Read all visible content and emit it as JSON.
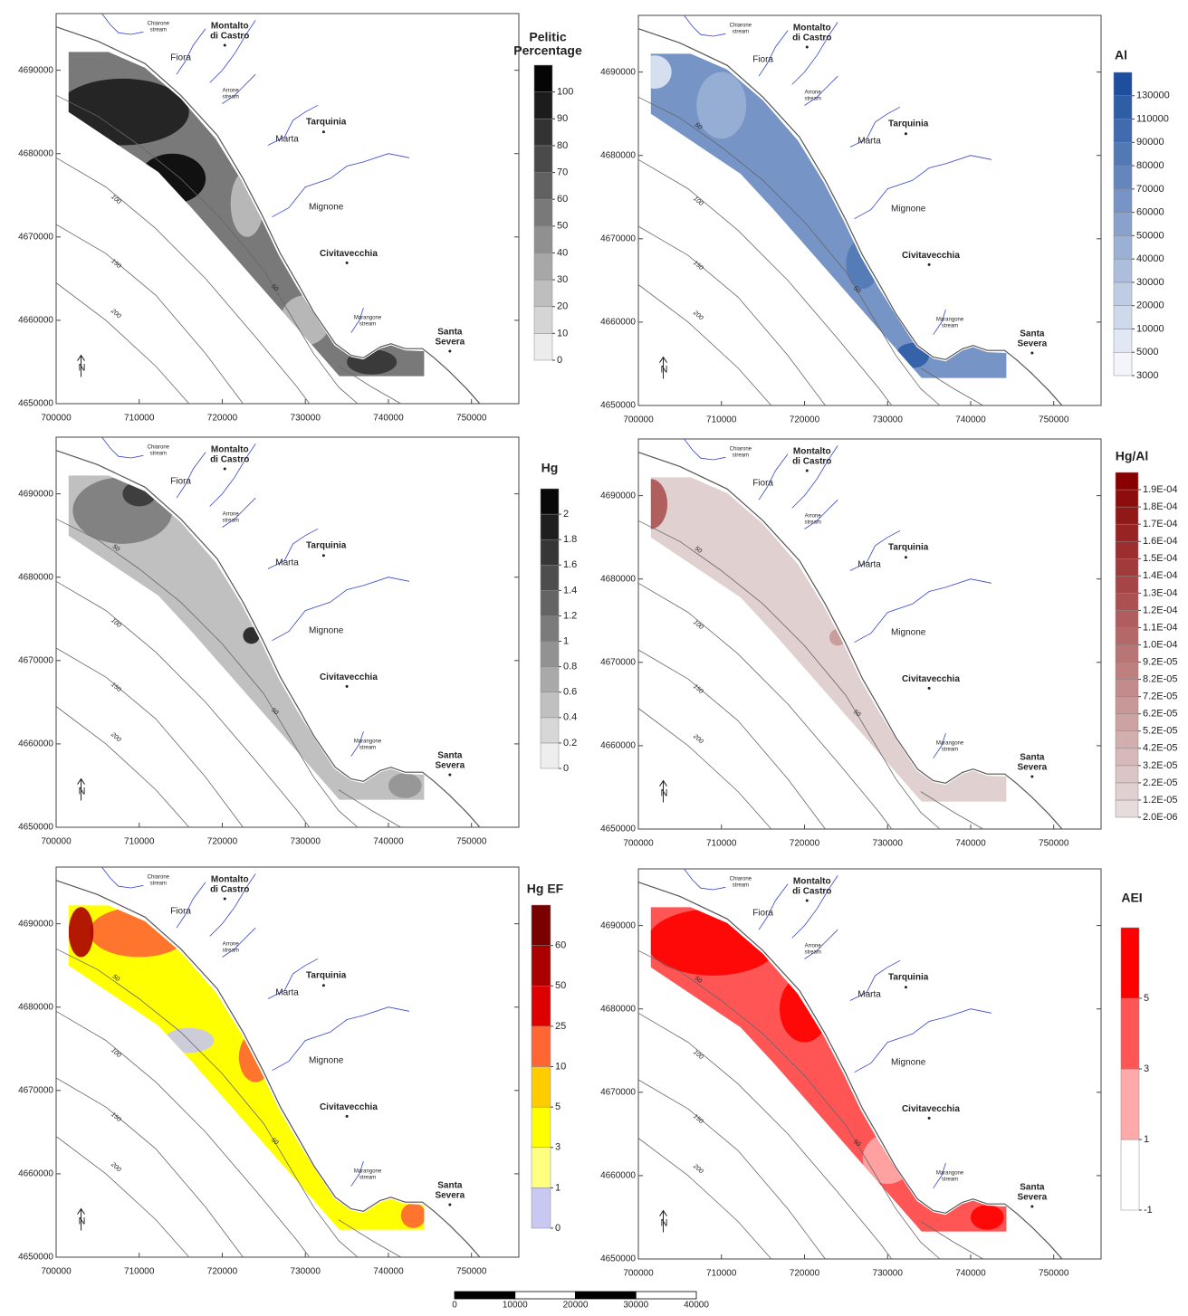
{
  "map": {
    "xlim": [
      700000,
      755700
    ],
    "ylim": [
      4650000,
      4696800
    ],
    "xticks": [
      700000,
      710000,
      720000,
      730000,
      740000,
      750000
    ],
    "yticks": [
      4650000,
      4660000,
      4670000,
      4680000,
      4690000
    ],
    "places": [
      {
        "label": [
          "Chiarone",
          "stream"
        ]
      },
      {
        "label": [
          "Montalto",
          "di Castro"
        ]
      },
      {
        "label": [
          "Fiora"
        ]
      },
      {
        "label": [
          "Arrone",
          "stream"
        ]
      },
      {
        "label": [
          "Tarquinia"
        ]
      },
      {
        "label": [
          "Marta"
        ]
      },
      {
        "label": [
          "Mignone"
        ]
      },
      {
        "label": [
          "Civitavecchia"
        ]
      },
      {
        "label": [
          "Marangone",
          "stream"
        ]
      },
      {
        "label": [
          "Santa",
          "Severa"
        ]
      }
    ],
    "isobaths": [
      50,
      100,
      150,
      200
    ],
    "north": "N"
  },
  "panels": [
    {
      "title": [
        "Pelitic",
        "Percentage"
      ],
      "ticks": [
        0,
        10,
        20,
        30,
        40,
        50,
        60,
        70,
        80,
        90,
        100
      ],
      "color_range": [
        "#ececec",
        "#050505"
      ]
    },
    {
      "title": [
        "Al"
      ],
      "ticks": [
        3000,
        5000,
        10000,
        20000,
        30000,
        40000,
        50000,
        60000,
        70000,
        80000,
        90000,
        110000,
        130000
      ],
      "color_range": [
        "#f3f5fb",
        "#1d4f9e"
      ]
    },
    {
      "title": [
        "Hg"
      ],
      "ticks": [
        0,
        0.2,
        0.4,
        0.6,
        0.8,
        1,
        1.2,
        1.4,
        1.6,
        1.8,
        2
      ],
      "color_range": [
        "#eeeeee",
        "#080808"
      ]
    },
    {
      "title": [
        "Hg/Al"
      ],
      "ticks": [
        {
          "value": 2e-06,
          "label": "2.0E-06"
        },
        {
          "value": 1.2e-05,
          "label": "1.2E-05"
        },
        {
          "value": 2.2e-05,
          "label": "2.2E-05"
        },
        {
          "value": 3.2e-05,
          "label": "3.2E-05"
        },
        {
          "value": 4.2e-05,
          "label": "4.2E-05"
        },
        {
          "value": 5.2e-05,
          "label": "5.2E-05"
        },
        {
          "value": 6.2e-05,
          "label": "6.2E-05"
        },
        {
          "value": 7.2e-05,
          "label": "7.2E-05"
        },
        {
          "value": 8.2e-05,
          "label": "8.2E-05"
        },
        {
          "value": 9.2e-05,
          "label": "9.2E-05"
        },
        {
          "value": 0.0001,
          "label": "1.0E-04"
        },
        {
          "value": 0.00011,
          "label": "1.1E-04"
        },
        {
          "value": 0.00012,
          "label": "1.2E-04"
        },
        {
          "value": 0.00013,
          "label": "1.3E-04"
        },
        {
          "value": 0.00014,
          "label": "1.4E-04"
        },
        {
          "value": 0.00015,
          "label": "1.5E-04"
        },
        {
          "value": 0.00016,
          "label": "1.6E-04"
        },
        {
          "value": 0.00017,
          "label": "1.7E-04"
        },
        {
          "value": 0.00018,
          "label": "1.8E-04"
        },
        {
          "value": 0.00019,
          "label": "1.9E-04"
        }
      ],
      "color_range": [
        "#e6dcdc",
        "#880000"
      ]
    },
    {
      "title": [
        "Hg EF"
      ],
      "ticks": [
        0,
        1,
        3,
        5,
        10,
        25,
        50,
        60
      ],
      "colors": [
        "#c8c8f2",
        "#ffff80",
        "#ffff00",
        "#ffcc00",
        "#ff6633",
        "#dd0000",
        "#aa0000",
        "#7a0000"
      ]
    },
    {
      "title": [
        "AEI"
      ],
      "ticks": [
        -1,
        1,
        3,
        5
      ],
      "colors": [
        "#ffffff",
        "#ffaaaa",
        "#ff5555",
        "#ff0000"
      ]
    }
  ],
  "scale_bar": {
    "ticks": [
      0,
      10000,
      20000,
      30000,
      40000
    ]
  }
}
